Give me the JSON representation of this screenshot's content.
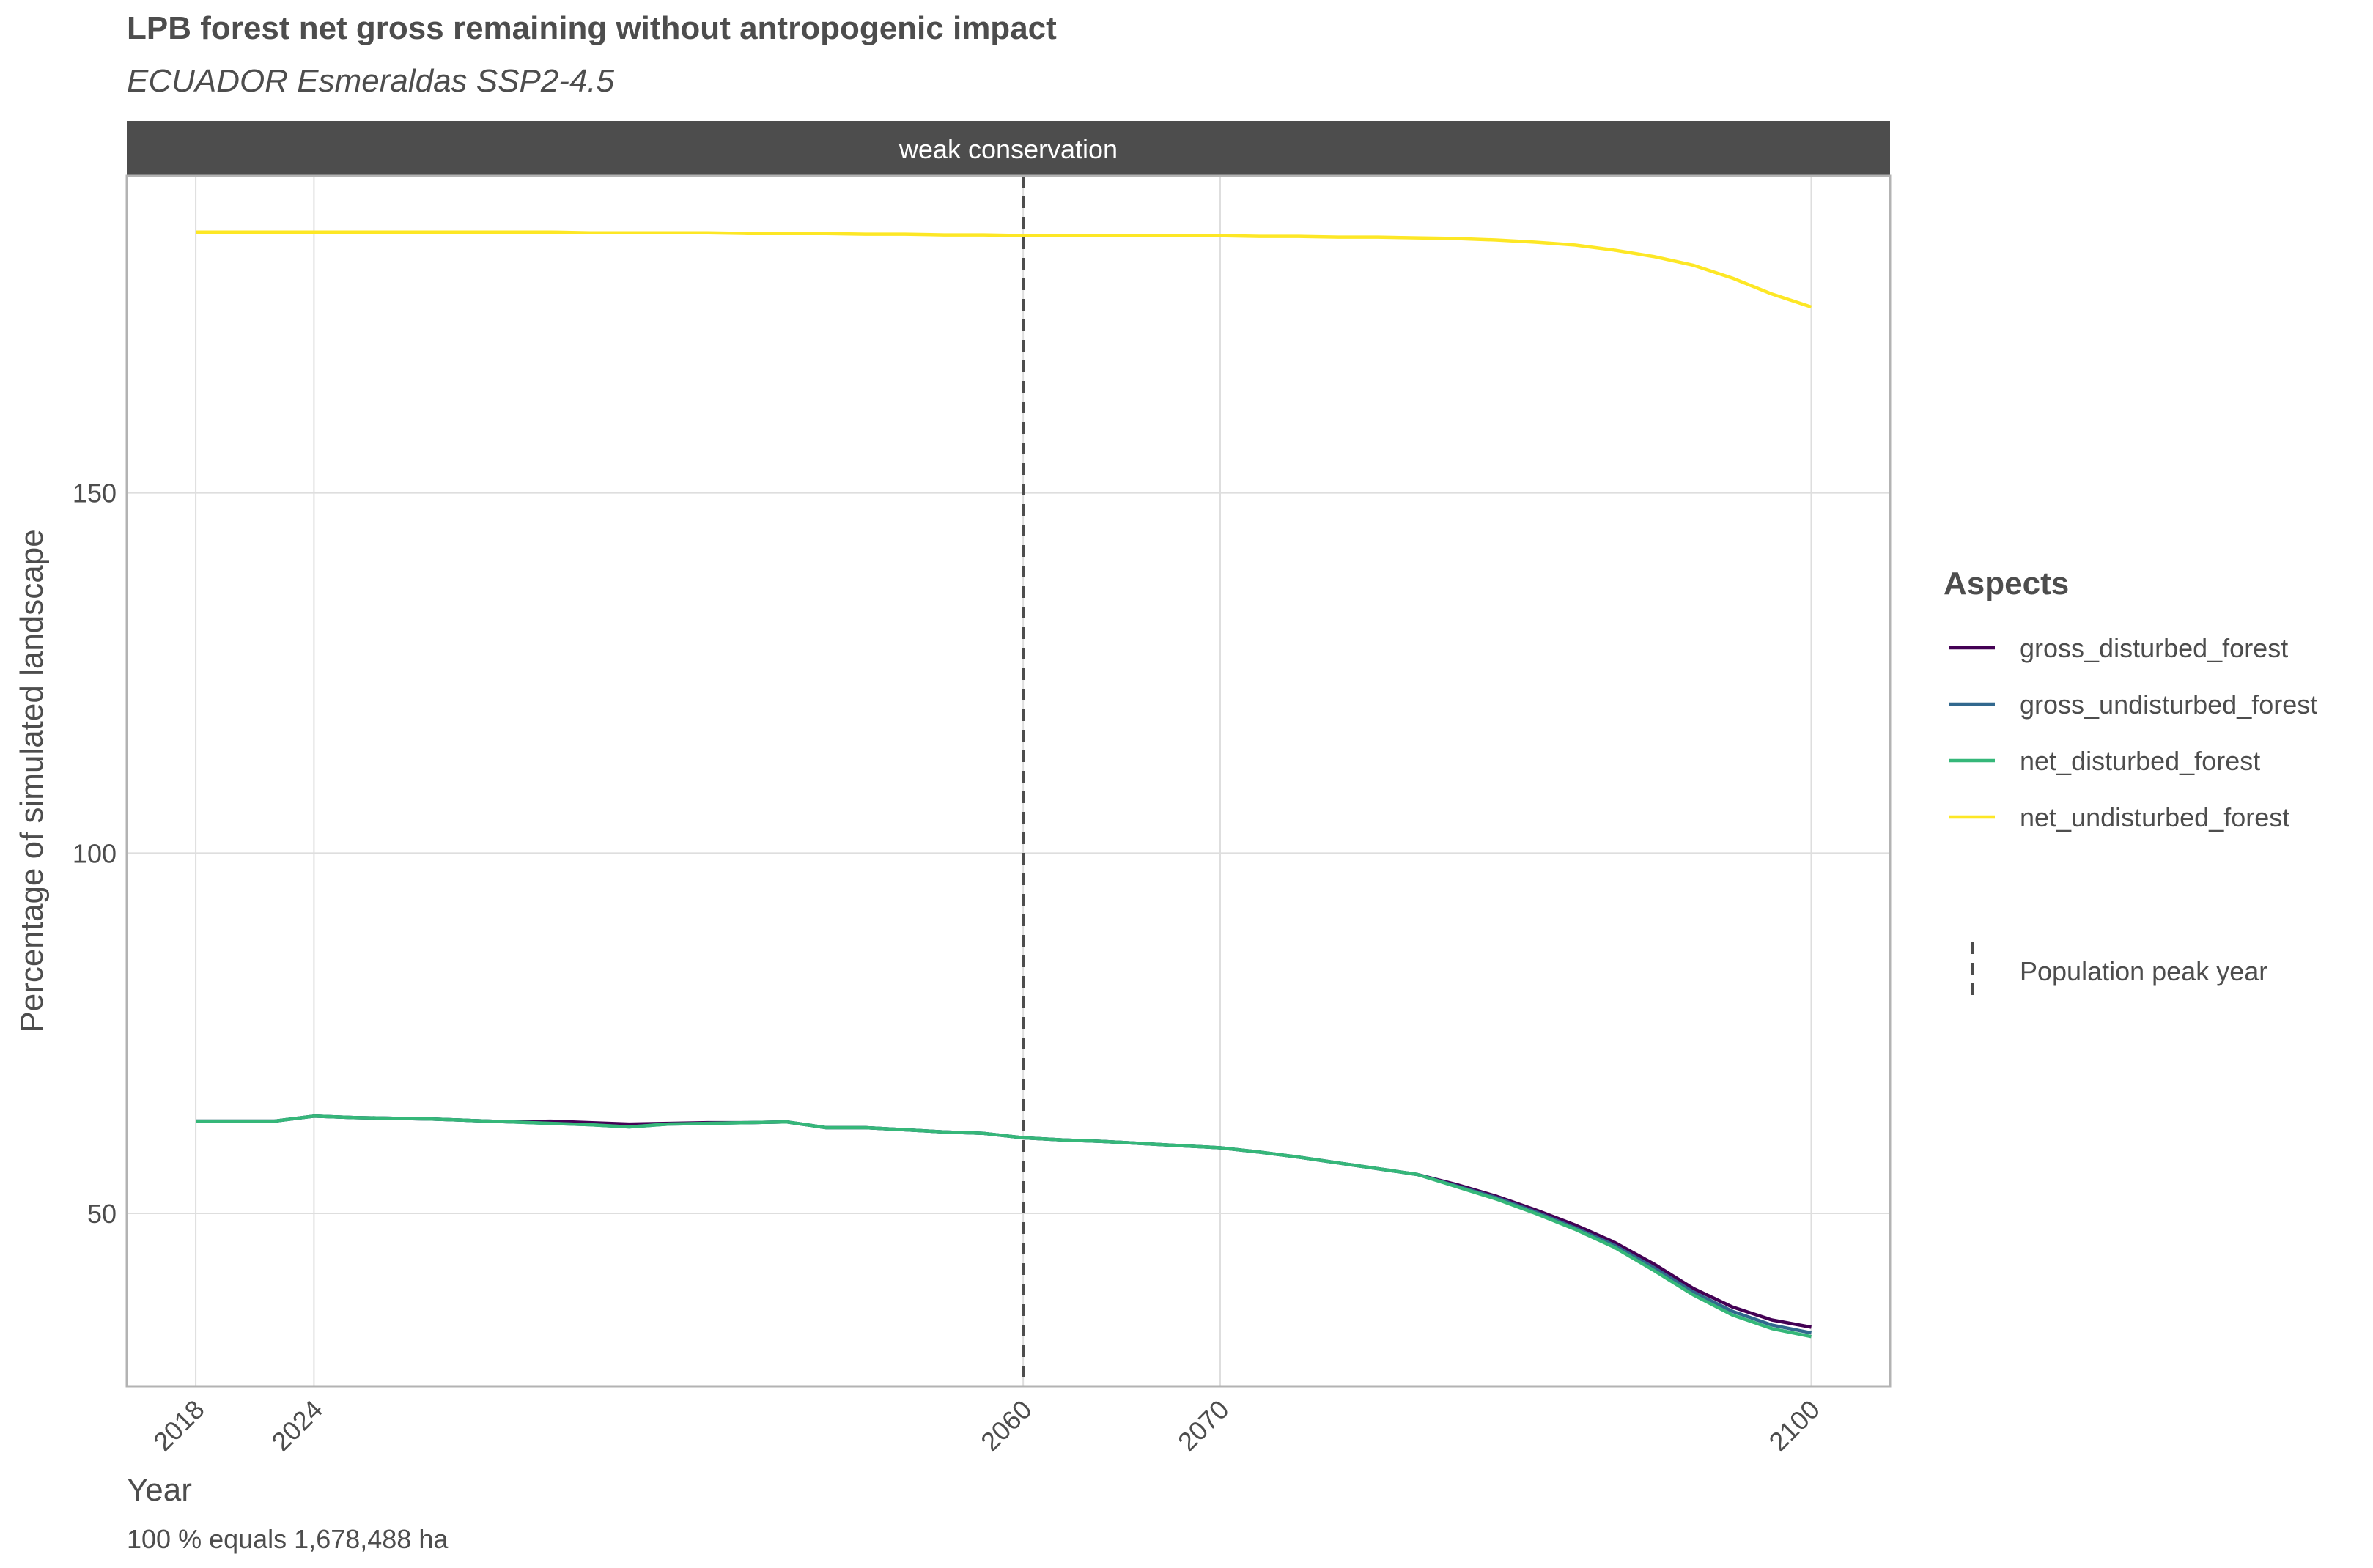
{
  "chart_data": {
    "type": "line",
    "title": "LPB forest net gross remaining without antropogenic impact",
    "subtitle": "ECUADOR Esmeraldas SSP2-4.5",
    "facet_label": "weak conservation",
    "xlabel": "Year",
    "ylabel": "Percentage of simulated landscape",
    "caption": "100 % equals 1,678,488 ha",
    "x_ticks": [
      2018,
      2024,
      2060,
      2070,
      2100
    ],
    "y_ticks": [
      50,
      100,
      150
    ],
    "xlim": [
      2014.5,
      2104
    ],
    "ylim": [
      26,
      194
    ],
    "grid": true,
    "legend_position": "right",
    "legend_title": "Aspects",
    "vline": {
      "x": 2060,
      "label": "Population peak year",
      "style": "dashed"
    },
    "x": [
      2018,
      2020,
      2022,
      2024,
      2026,
      2028,
      2030,
      2032,
      2034,
      2036,
      2038,
      2040,
      2042,
      2044,
      2046,
      2048,
      2050,
      2052,
      2054,
      2056,
      2058,
      2060,
      2062,
      2064,
      2066,
      2068,
      2070,
      2072,
      2074,
      2076,
      2078,
      2080,
      2082,
      2084,
      2086,
      2088,
      2090,
      2092,
      2094,
      2096,
      2098,
      2100
    ],
    "series": [
      {
        "name": "gross_disturbed_forest",
        "color": "#440154",
        "values": [
          62.8,
          62.8,
          62.8,
          63.5,
          63.3,
          63.2,
          63.1,
          62.9,
          62.7,
          62.8,
          62.6,
          62.4,
          62.5,
          62.6,
          62.6,
          62.7,
          61.9,
          61.9,
          61.6,
          61.3,
          61.1,
          60.5,
          60.2,
          60.0,
          59.7,
          59.4,
          59.1,
          58.5,
          57.8,
          57.0,
          56.2,
          55.4,
          54.0,
          52.4,
          50.5,
          48.4,
          46.0,
          43.0,
          39.6,
          37.0,
          35.2,
          34.2
        ]
      },
      {
        "name": "gross_undisturbed_forest",
        "color": "#31688e",
        "values": [
          62.8,
          62.8,
          62.8,
          63.5,
          63.3,
          63.2,
          63.1,
          62.9,
          62.7,
          62.5,
          62.3,
          62.0,
          62.4,
          62.5,
          62.6,
          62.7,
          61.9,
          61.9,
          61.6,
          61.3,
          61.1,
          60.5,
          60.2,
          60.0,
          59.7,
          59.4,
          59.1,
          58.5,
          57.8,
          57.0,
          56.2,
          55.4,
          53.8,
          52.2,
          50.2,
          48.0,
          45.6,
          42.5,
          39.1,
          36.4,
          34.5,
          33.4
        ]
      },
      {
        "name": "net_disturbed_forest",
        "color": "#35b779",
        "values": [
          62.8,
          62.8,
          62.8,
          63.5,
          63.3,
          63.2,
          63.1,
          62.9,
          62.7,
          62.5,
          62.3,
          62.0,
          62.4,
          62.5,
          62.6,
          62.7,
          61.9,
          61.9,
          61.6,
          61.3,
          61.1,
          60.5,
          60.2,
          60.0,
          59.7,
          59.4,
          59.1,
          58.5,
          57.8,
          57.0,
          56.2,
          55.4,
          53.7,
          52.0,
          50.0,
          47.8,
          45.3,
          42.1,
          38.7,
          35.9,
          34.0,
          32.9
        ]
      },
      {
        "name": "net_undisturbed_forest",
        "color": "#fde725",
        "values": [
          186.2,
          186.2,
          186.2,
          186.2,
          186.2,
          186.2,
          186.2,
          186.2,
          186.2,
          186.2,
          186.1,
          186.1,
          186.1,
          186.1,
          186.0,
          186.0,
          186.0,
          185.9,
          185.9,
          185.8,
          185.8,
          185.7,
          185.7,
          185.7,
          185.7,
          185.7,
          185.7,
          185.6,
          185.6,
          185.5,
          185.5,
          185.4,
          185.3,
          185.1,
          184.8,
          184.4,
          183.7,
          182.8,
          181.6,
          179.8,
          177.6,
          175.8
        ]
      }
    ]
  }
}
